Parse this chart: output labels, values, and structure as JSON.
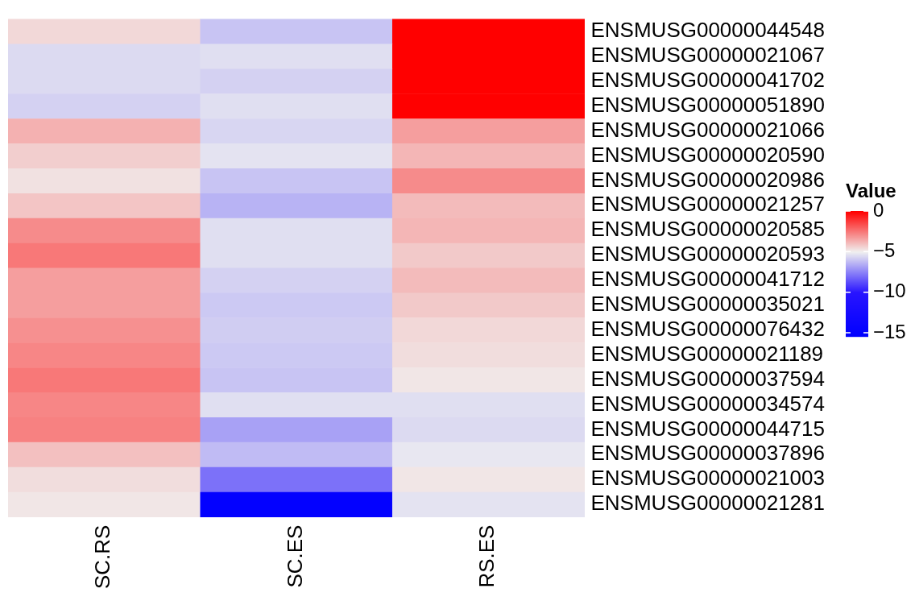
{
  "chart_data": {
    "type": "heatmap",
    "legend_title": "Value",
    "categories": [
      "SC.RS",
      "SC.ES",
      "RS.ES"
    ],
    "y_categories": [
      "ENSMUSG00000044548",
      "ENSMUSG00000021067",
      "ENSMUSG00000041702",
      "ENSMUSG00000051890",
      "ENSMUSG00000021066",
      "ENSMUSG00000020590",
      "ENSMUSG00000020986",
      "ENSMUSG00000021257",
      "ENSMUSG00000020585",
      "ENSMUSG00000020593",
      "ENSMUSG00000041712",
      "ENSMUSG00000035021",
      "ENSMUSG00000076432",
      "ENSMUSG00000021189",
      "ENSMUSG00000037594",
      "ENSMUSG00000034574",
      "ENSMUSG00000044715",
      "ENSMUSG00000037896",
      "ENSMUSG00000021003",
      "ENSMUSG00000021281"
    ],
    "cells": [
      [
        -4.5,
        -6.0,
        0
      ],
      [
        -5.5,
        -5.4,
        0
      ],
      [
        -5.5,
        -5.7,
        0
      ],
      [
        -5.7,
        -5.4,
        0
      ],
      [
        -3.7,
        -5.6,
        -3.3
      ],
      [
        -4.3,
        -5.3,
        -3.8
      ],
      [
        -4.7,
        -6.0,
        -2.9
      ],
      [
        -4.1,
        -6.4,
        -3.9
      ],
      [
        -2.9,
        -5.4,
        -3.8
      ],
      [
        -2.5,
        -5.4,
        -4.2
      ],
      [
        -3.3,
        -5.7,
        -3.9
      ],
      [
        -3.3,
        -5.9,
        -4.2
      ],
      [
        -3.0,
        -5.8,
        -4.5
      ],
      [
        -2.8,
        -5.9,
        -4.6
      ],
      [
        -2.5,
        -6.0,
        -4.8
      ],
      [
        -2.8,
        -5.4,
        -5.4
      ],
      [
        -2.7,
        -6.8,
        -5.5
      ],
      [
        -4.0,
        -6.2,
        -5.2
      ],
      [
        -4.6,
        -7.9,
        -4.8
      ],
      [
        -4.8,
        -15,
        -5.3
      ]
    ],
    "clim": [
      -15.4,
      0
    ],
    "cticks": [
      {
        "value": 0,
        "label": "0"
      },
      {
        "value": -5,
        "label": "−5"
      },
      {
        "value": -10,
        "label": "−10"
      },
      {
        "value": -15,
        "label": "−15"
      }
    ]
  }
}
